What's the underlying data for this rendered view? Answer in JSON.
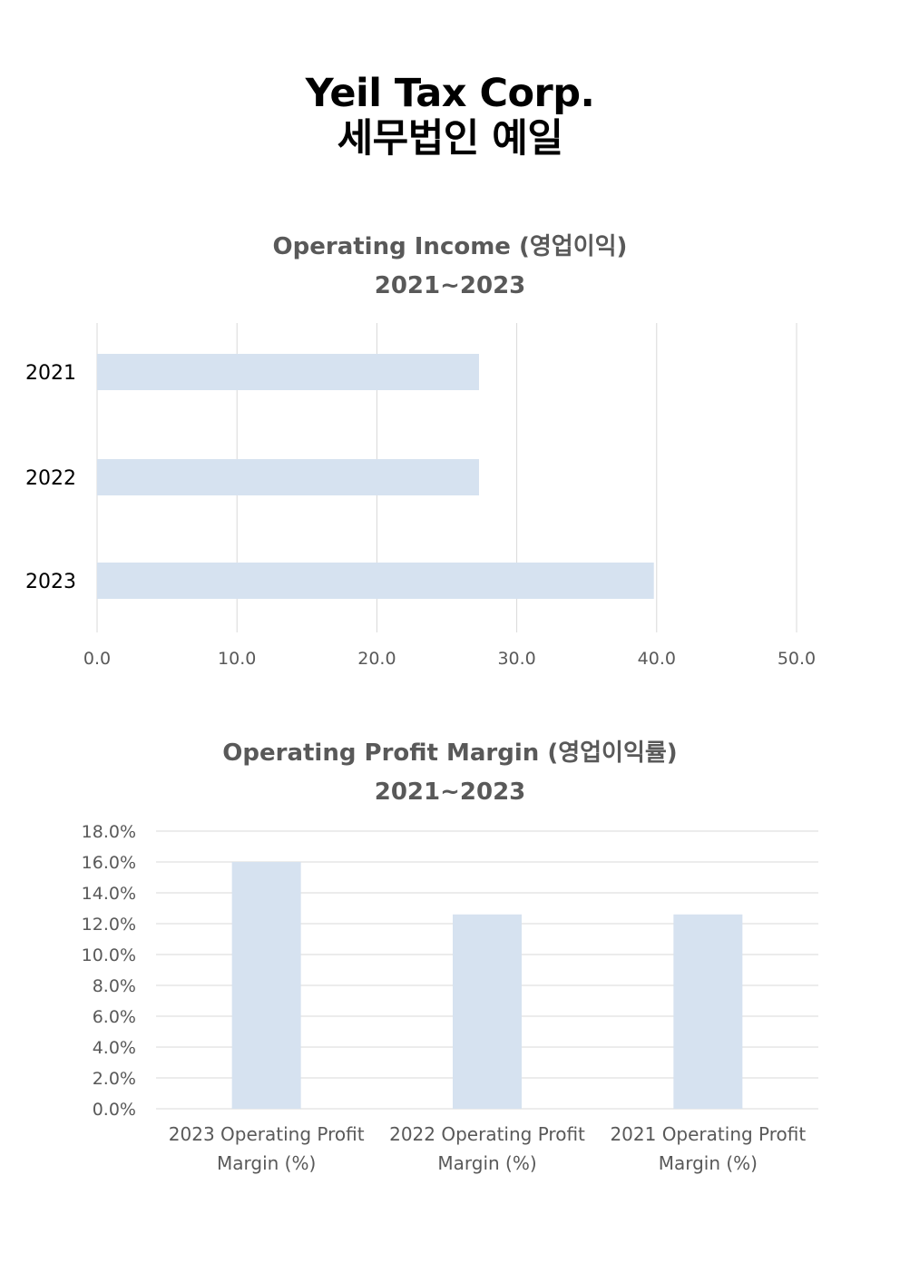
{
  "header": {
    "title_line1": "Yeil Tax Corp.",
    "title_line2": "세무법인 예일"
  },
  "colors": {
    "bar": "#d6e2f0",
    "grid": "#d9d9d9",
    "axis_text": "#595959",
    "title_text": "#595959",
    "header_text": "#000000"
  },
  "chart_data": [
    {
      "type": "bar",
      "orientation": "horizontal",
      "title": "Operating Income (영업이익)",
      "subtitle": "2021~2023",
      "categories": [
        "2021",
        "2022",
        "2023"
      ],
      "values": [
        27.3,
        27.3,
        39.8
      ],
      "xlim": [
        0,
        50
      ],
      "ticks": [
        "0.0",
        "10.0",
        "20.0",
        "30.0",
        "40.0",
        "50.0"
      ],
      "grid": true
    },
    {
      "type": "bar",
      "orientation": "vertical",
      "title": "Operating Profit Margin (영업이익률)",
      "subtitle": "2021~2023",
      "categories": [
        "2023 Operating Profit Margin (%)",
        "2022 Operating Profit Margin (%)",
        "2021 Operating Profit Margin (%)"
      ],
      "category_lines": [
        [
          "2023 Operating Profit",
          "Margin (%)"
        ],
        [
          "2022 Operating Profit",
          "Margin (%)"
        ],
        [
          "2021 Operating Profit",
          "Margin (%)"
        ]
      ],
      "values": [
        16.0,
        12.6,
        12.6
      ],
      "ylim": [
        0,
        18
      ],
      "ticks": [
        "0.0%",
        "2.0%",
        "4.0%",
        "6.0%",
        "8.0%",
        "10.0%",
        "12.0%",
        "14.0%",
        "16.0%",
        "18.0%"
      ],
      "grid": true
    }
  ]
}
